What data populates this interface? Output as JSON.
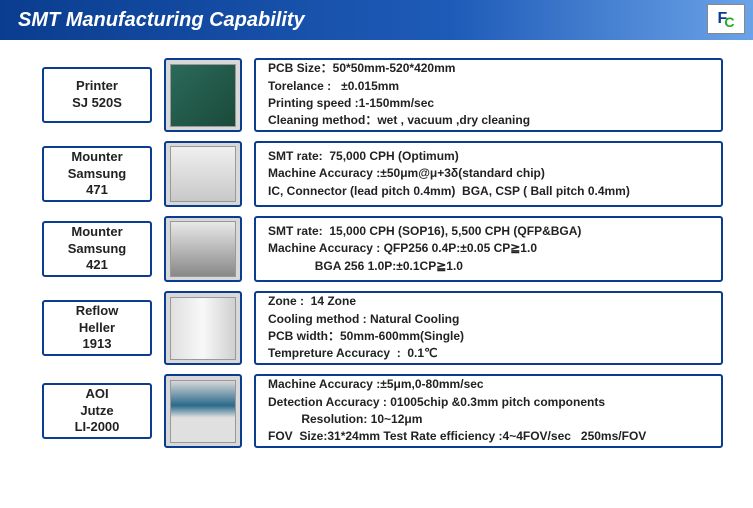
{
  "header": {
    "title": "SMT Manufacturing Capability",
    "title_color": "#ffffff",
    "bg_gradient_from": "#0a3d8f",
    "bg_gradient_to": "#6ba3e8"
  },
  "border_color": "#0a3d8f",
  "text_color": "#222222",
  "font_size_label": 13,
  "font_size_spec": 12,
  "logo": {
    "f_color": "#0a3d8f",
    "c_color": "#22aa22"
  },
  "rows": [
    {
      "label_line1": "Printer",
      "label_line2": "SJ 520S",
      "label_line3": "",
      "img_class": "green",
      "specs": [
        "PCB Size：50*50mm-520*420mm",
        "Torelance :   ±0.015mm",
        "Printing speed :1-150mm/sec",
        "Cleaning method：wet , vacuum ,dry cleaning"
      ]
    },
    {
      "label_line1": "Mounter",
      "label_line2": "Samsung",
      "label_line3": "471",
      "img_class": "white1",
      "specs": [
        "SMT rate:  75,000 CPH (Optimum)",
        "Machine Accuracy :±50μm@μ+3δ(standard chip)",
        "IC, Connector (lead pitch 0.4mm)  BGA, CSP ( Ball pitch 0.4mm)"
      ]
    },
    {
      "label_line1": "Mounter",
      "label_line2": "Samsung",
      "label_line3": "421",
      "img_class": "white2",
      "specs": [
        "SMT rate:  15,000 CPH (SOP16), 5,500 CPH (QFP&BGA)",
        "Machine Accuracy : QFP256 0.4P:±0.05 CP≧1.0",
        "              BGA 256 1.0P:±0.1CP≧1.0"
      ]
    },
    {
      "label_line1": "Reflow",
      "label_line2": "Heller",
      "label_line3": "1913",
      "img_class": "oven",
      "specs": [
        "Zone :  14 Zone",
        "Cooling method : Natural Cooling",
        "PCB width：50mm-600mm(Single)",
        "Tempreture Accuracy  :  0.1℃"
      ]
    },
    {
      "label_line1": "AOI",
      "label_line2": "Jutze",
      "label_line3": "LI-2000",
      "img_class": "aoi",
      "specs": [
        "Machine Accuracy :±5μm,0-80mm/sec",
        "Detection Accuracy : 01005chip &0.3mm pitch components",
        "          Resolution: 10~12μm",
        "FOV  Size:31*24mm Test Rate efficiency :4~4FOV/sec   250ms/FOV"
      ]
    }
  ]
}
